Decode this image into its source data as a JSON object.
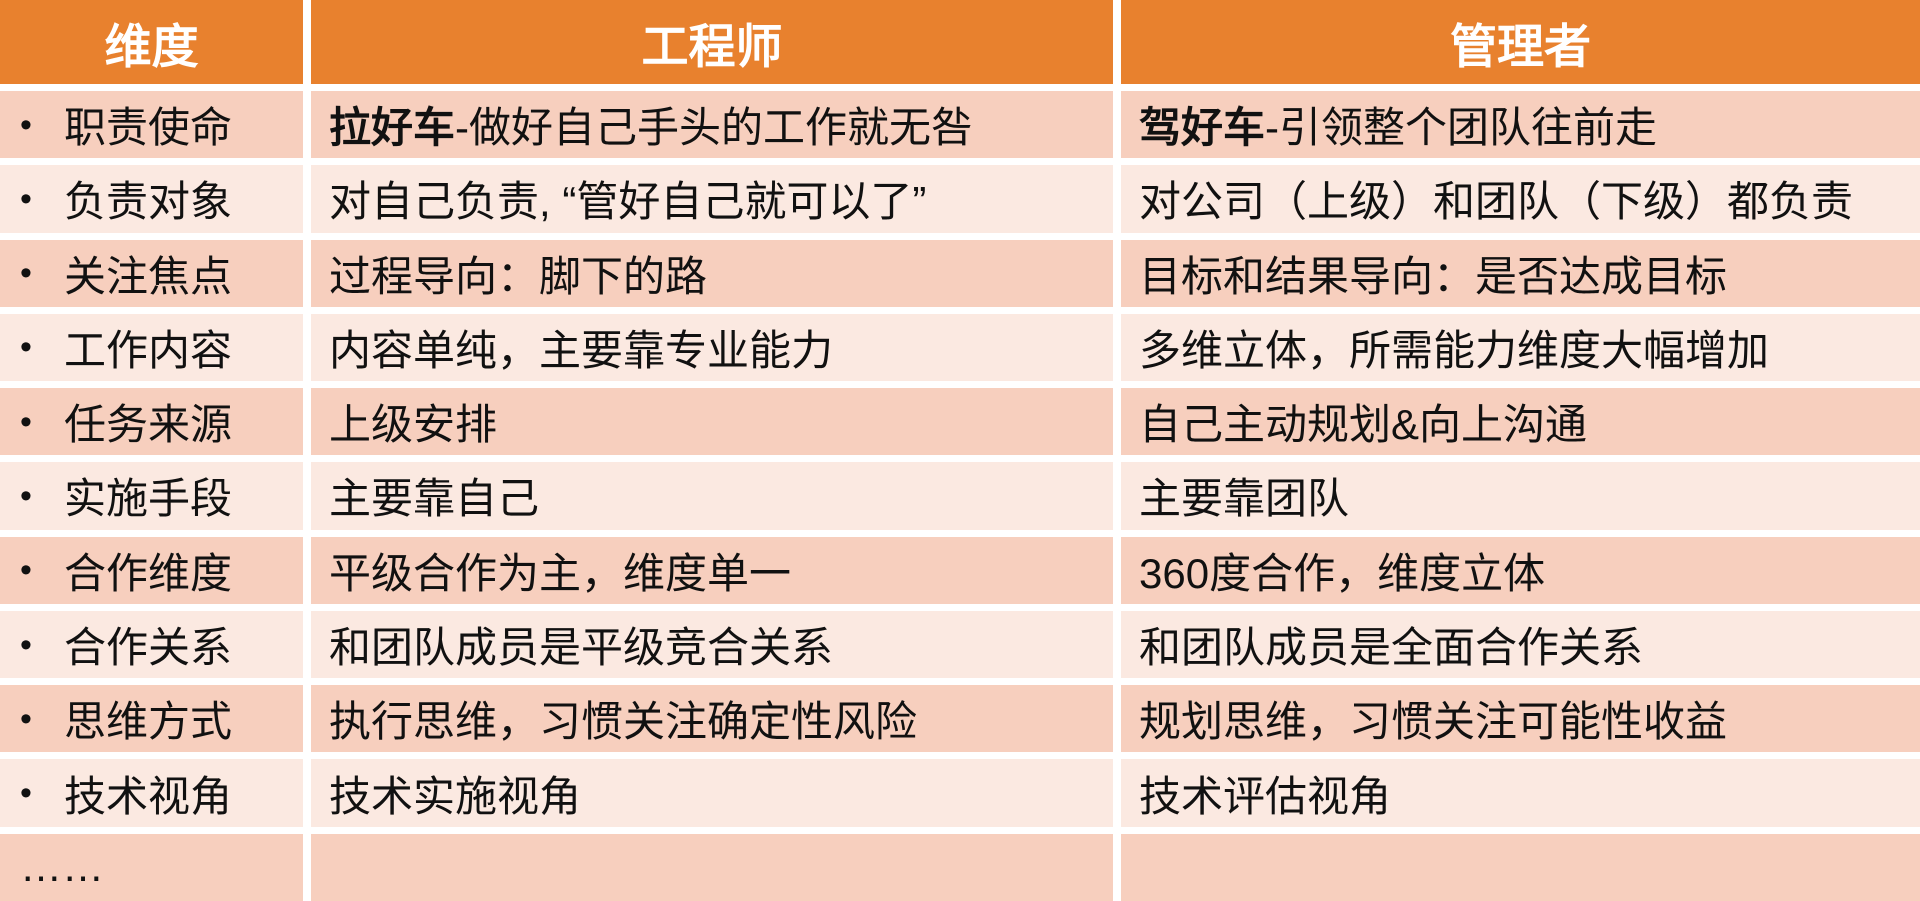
{
  "colors": {
    "header_bg": "#E8812E",
    "header_text": "#FFFFFF",
    "row_dark": "#F7CFBE",
    "row_light": "#FBE9E1",
    "divider": "#FFFFFF",
    "body_text": "#111111"
  },
  "header": {
    "dimension": "维度",
    "engineer": "工程师",
    "manager": "管理者"
  },
  "rows": [
    {
      "bullet": "•",
      "dimension": "职责使命",
      "engineer_bold": "拉好车",
      "engineer_text": "-做好自己手头的工作就无咎",
      "manager_bold": "驾好车",
      "manager_text": "-引领整个团队往前走"
    },
    {
      "bullet": "•",
      "dimension": "负责对象",
      "engineer_bold": "",
      "engineer_text": "对自己负责, “管好自己就可以了”",
      "manager_bold": "",
      "manager_text": "对公司（上级）和团队（下级）都负责"
    },
    {
      "bullet": "•",
      "dimension": "关注焦点",
      "engineer_bold": "",
      "engineer_text": "过程导向：脚下的路",
      "manager_bold": "",
      "manager_text": "目标和结果导向：是否达成目标"
    },
    {
      "bullet": "•",
      "dimension": "工作内容",
      "engineer_bold": "",
      "engineer_text": "内容单纯，主要靠专业能力",
      "manager_bold": "",
      "manager_text": "多维立体，所需能力维度大幅增加"
    },
    {
      "bullet": "•",
      "dimension": "任务来源",
      "engineer_bold": "",
      "engineer_text": "上级安排",
      "manager_bold": "",
      "manager_text": "自己主动规划&向上沟通"
    },
    {
      "bullet": "•",
      "dimension": "实施手段",
      "engineer_bold": "",
      "engineer_text": "主要靠自己",
      "manager_bold": "",
      "manager_text": "主要靠团队"
    },
    {
      "bullet": "•",
      "dimension": "合作维度",
      "engineer_bold": "",
      "engineer_text": "平级合作为主，维度单一",
      "manager_bold": "",
      "manager_text": "360度合作，维度立体"
    },
    {
      "bullet": "•",
      "dimension": "合作关系",
      "engineer_bold": "",
      "engineer_text": "和团队成员是平级竞合关系",
      "manager_bold": "",
      "manager_text": "和团队成员是全面合作关系"
    },
    {
      "bullet": "•",
      "dimension": "思维方式",
      "engineer_bold": "",
      "engineer_text": "执行思维，习惯关注确定性风险",
      "manager_bold": "",
      "manager_text": "规划思维，习惯关注可能性收益"
    },
    {
      "bullet": "•",
      "dimension": "技术视角",
      "engineer_bold": "",
      "engineer_text": "技术实施视角",
      "manager_bold": "",
      "manager_text": "技术评估视角"
    },
    {
      "bullet": "",
      "dimension": "……",
      "engineer_bold": "",
      "engineer_text": "",
      "manager_bold": "",
      "manager_text": ""
    }
  ]
}
